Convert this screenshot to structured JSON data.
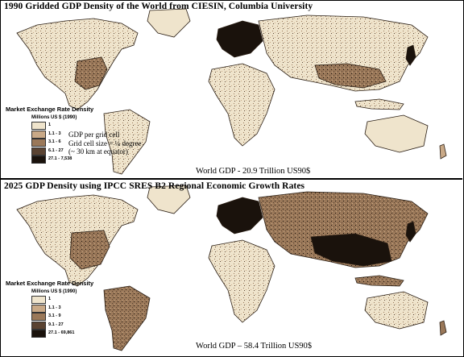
{
  "top_panel": {
    "title": "1990 Gridded GDP Density of the World from CIESIN, Columbia University",
    "legend": {
      "title": "Market Exchange Rate Density",
      "units": "Millions US $ (1990)",
      "classes": [
        {
          "label": "1",
          "color": "#efe4cc"
        },
        {
          "label": "1.1 - 3",
          "color": "#c9a987"
        },
        {
          "label": "3.1 - 6",
          "color": "#9a7859"
        },
        {
          "label": "6.1 - 27",
          "color": "#5a4332"
        },
        {
          "label": "27.1 - 7,538",
          "color": "#1a120c"
        }
      ],
      "notes": [
        "GDP per grid cell",
        "Grid cell size = ¼ degree",
        "(~ 30 km at equator)"
      ]
    },
    "gdp_total": "World GDP - 20.9 Trillion US90$"
  },
  "bottom_panel": {
    "title": "2025 GDP Density using IPCC SRES B2 Regional Economic Growth Rates",
    "legend": {
      "title": "Market Exchange Rate Density",
      "units": "Millions US $ (1990)",
      "classes": [
        {
          "label": "1",
          "color": "#efe4cc"
        },
        {
          "label": "1.1 - 3",
          "color": "#c9a987"
        },
        {
          "label": "3.1 - 9",
          "color": "#9a7859"
        },
        {
          "label": "9.1 - 27",
          "color": "#5a4332"
        },
        {
          "label": "27.1 - 69,861",
          "color": "#1a120c"
        }
      ]
    },
    "gdp_total": "World GDP – 58.4 Trillion US90$"
  }
}
